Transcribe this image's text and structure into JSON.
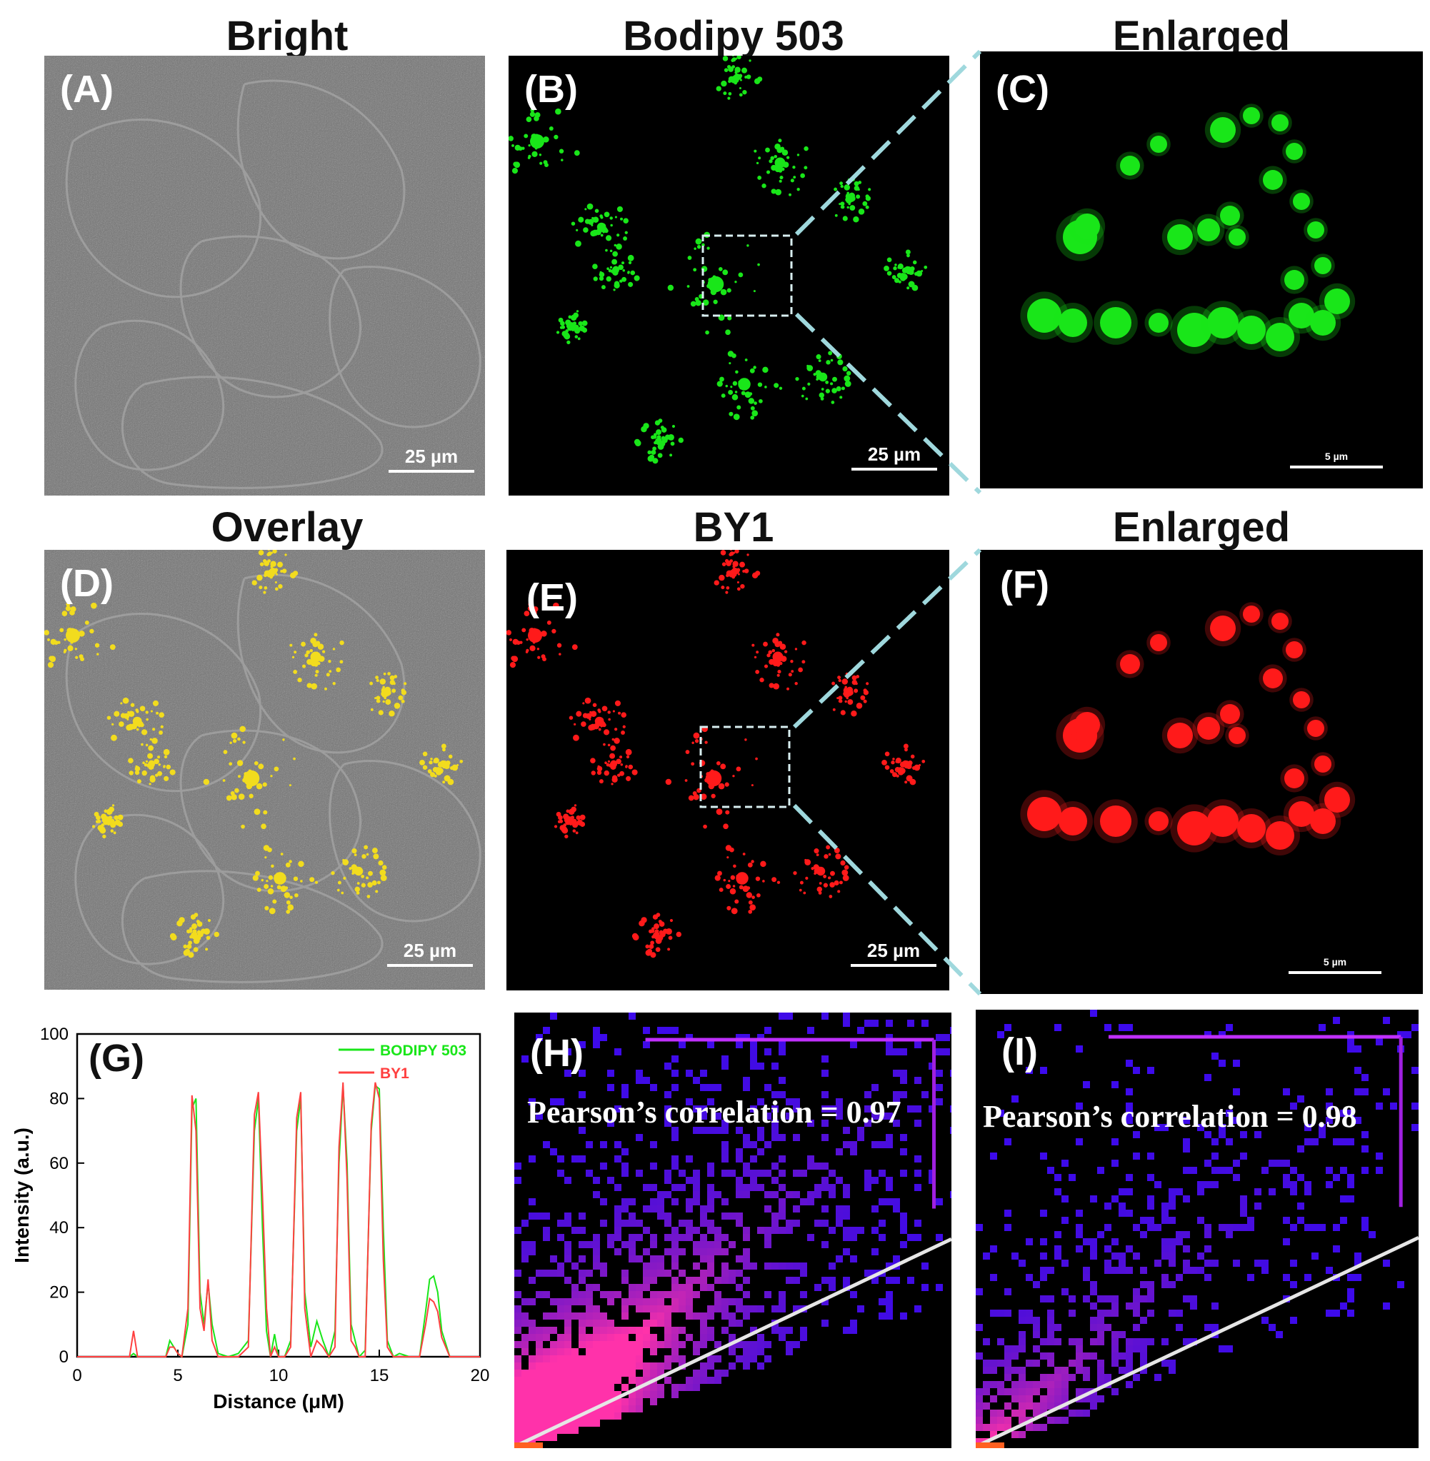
{
  "titles": {
    "a": "Bright",
    "b": "Bodipy 503",
    "c": "Enlarged",
    "d": "Overlay",
    "e": "BY1",
    "f": "Enlarged"
  },
  "panel_labels": {
    "a": "(A)",
    "b": "(B)",
    "c": "(C)",
    "d": "(D)",
    "e": "(E)",
    "f": "(F)",
    "g": "(G)",
    "h": "(H)",
    "i": "(I)"
  },
  "scale_bars": {
    "large": "25 µm",
    "small": "5 µm"
  },
  "pearson": {
    "h": "Pearson’s correlation  = 0.97",
    "i": "Pearson’s correlation  = 0.98"
  },
  "colors": {
    "green_channel": "#19e619",
    "red_channel": "#ff1a1a",
    "overlay": "#f2dc1e",
    "bright_field": "#7a7a7a",
    "dashed_guides": "#9fd8dd"
  },
  "chart_data": {
    "type": "line",
    "xlabel": "Distance (μM)",
    "ylabel": "Intensity (a.u.)",
    "xlim": [
      0,
      20
    ],
    "ylim": [
      0,
      100
    ],
    "xticks": [
      0,
      5,
      10,
      15,
      20
    ],
    "yticks": [
      0,
      20,
      40,
      60,
      80,
      100
    ],
    "legend_position": "top-right",
    "series": [
      {
        "name": "BODIPY 503",
        "color": "#19e619",
        "x": [
          0,
          2.6,
          2.8,
          3.0,
          4.4,
          4.6,
          4.8,
          5.0,
          5.2,
          5.5,
          5.7,
          5.9,
          6.1,
          6.3,
          6.5,
          6.7,
          7.0,
          7.5,
          8.0,
          8.5,
          8.8,
          9.0,
          9.2,
          9.4,
          9.6,
          9.8,
          10.0,
          10.3,
          10.6,
          10.9,
          11.1,
          11.3,
          11.6,
          11.9,
          12.2,
          12.5,
          12.8,
          13.0,
          13.2,
          13.4,
          13.6,
          13.8,
          14.0,
          14.3,
          14.6,
          14.8,
          15.0,
          15.2,
          15.4,
          15.7,
          16.0,
          16.5,
          17.0,
          17.3,
          17.5,
          17.7,
          17.9,
          18.1,
          18.5,
          20
        ],
        "y": [
          0,
          0,
          1,
          0,
          0,
          5,
          3,
          1,
          0,
          10,
          77,
          80,
          20,
          10,
          23,
          10,
          1,
          0,
          1,
          5,
          70,
          80,
          40,
          8,
          0,
          7,
          0,
          0,
          5,
          70,
          80,
          20,
          3,
          11,
          5,
          0,
          8,
          60,
          84,
          60,
          10,
          5,
          0,
          2,
          70,
          84,
          83,
          40,
          5,
          0,
          1,
          0,
          0,
          14,
          24,
          25,
          20,
          8,
          0,
          0
        ]
      },
      {
        "name": "BY1",
        "color": "#ff4040",
        "x": [
          0,
          2.6,
          2.8,
          3.0,
          4.4,
          4.6,
          4.8,
          5.0,
          5.2,
          5.5,
          5.7,
          5.9,
          6.1,
          6.3,
          6.5,
          6.7,
          7.0,
          7.5,
          8.0,
          8.5,
          8.8,
          9.0,
          9.2,
          9.4,
          9.6,
          9.8,
          10.0,
          10.3,
          10.6,
          10.9,
          11.1,
          11.3,
          11.6,
          11.9,
          12.2,
          12.5,
          12.8,
          13.0,
          13.2,
          13.4,
          13.6,
          13.8,
          14.0,
          14.3,
          14.6,
          14.8,
          15.0,
          15.2,
          15.4,
          15.7,
          16.0,
          16.5,
          17.0,
          17.3,
          17.5,
          17.7,
          17.9,
          18.1,
          18.5,
          20
        ],
        "y": [
          0,
          0,
          8,
          0,
          0,
          3,
          3,
          1,
          0,
          15,
          81,
          70,
          15,
          8,
          24,
          5,
          0,
          0,
          0,
          3,
          75,
          82,
          50,
          15,
          0,
          3,
          0,
          0,
          3,
          74,
          82,
          15,
          0,
          5,
          3,
          0,
          3,
          65,
          85,
          55,
          5,
          3,
          0,
          0,
          72,
          85,
          80,
          30,
          3,
          0,
          0,
          0,
          0,
          10,
          18,
          17,
          14,
          6,
          0,
          0
        ]
      }
    ]
  }
}
